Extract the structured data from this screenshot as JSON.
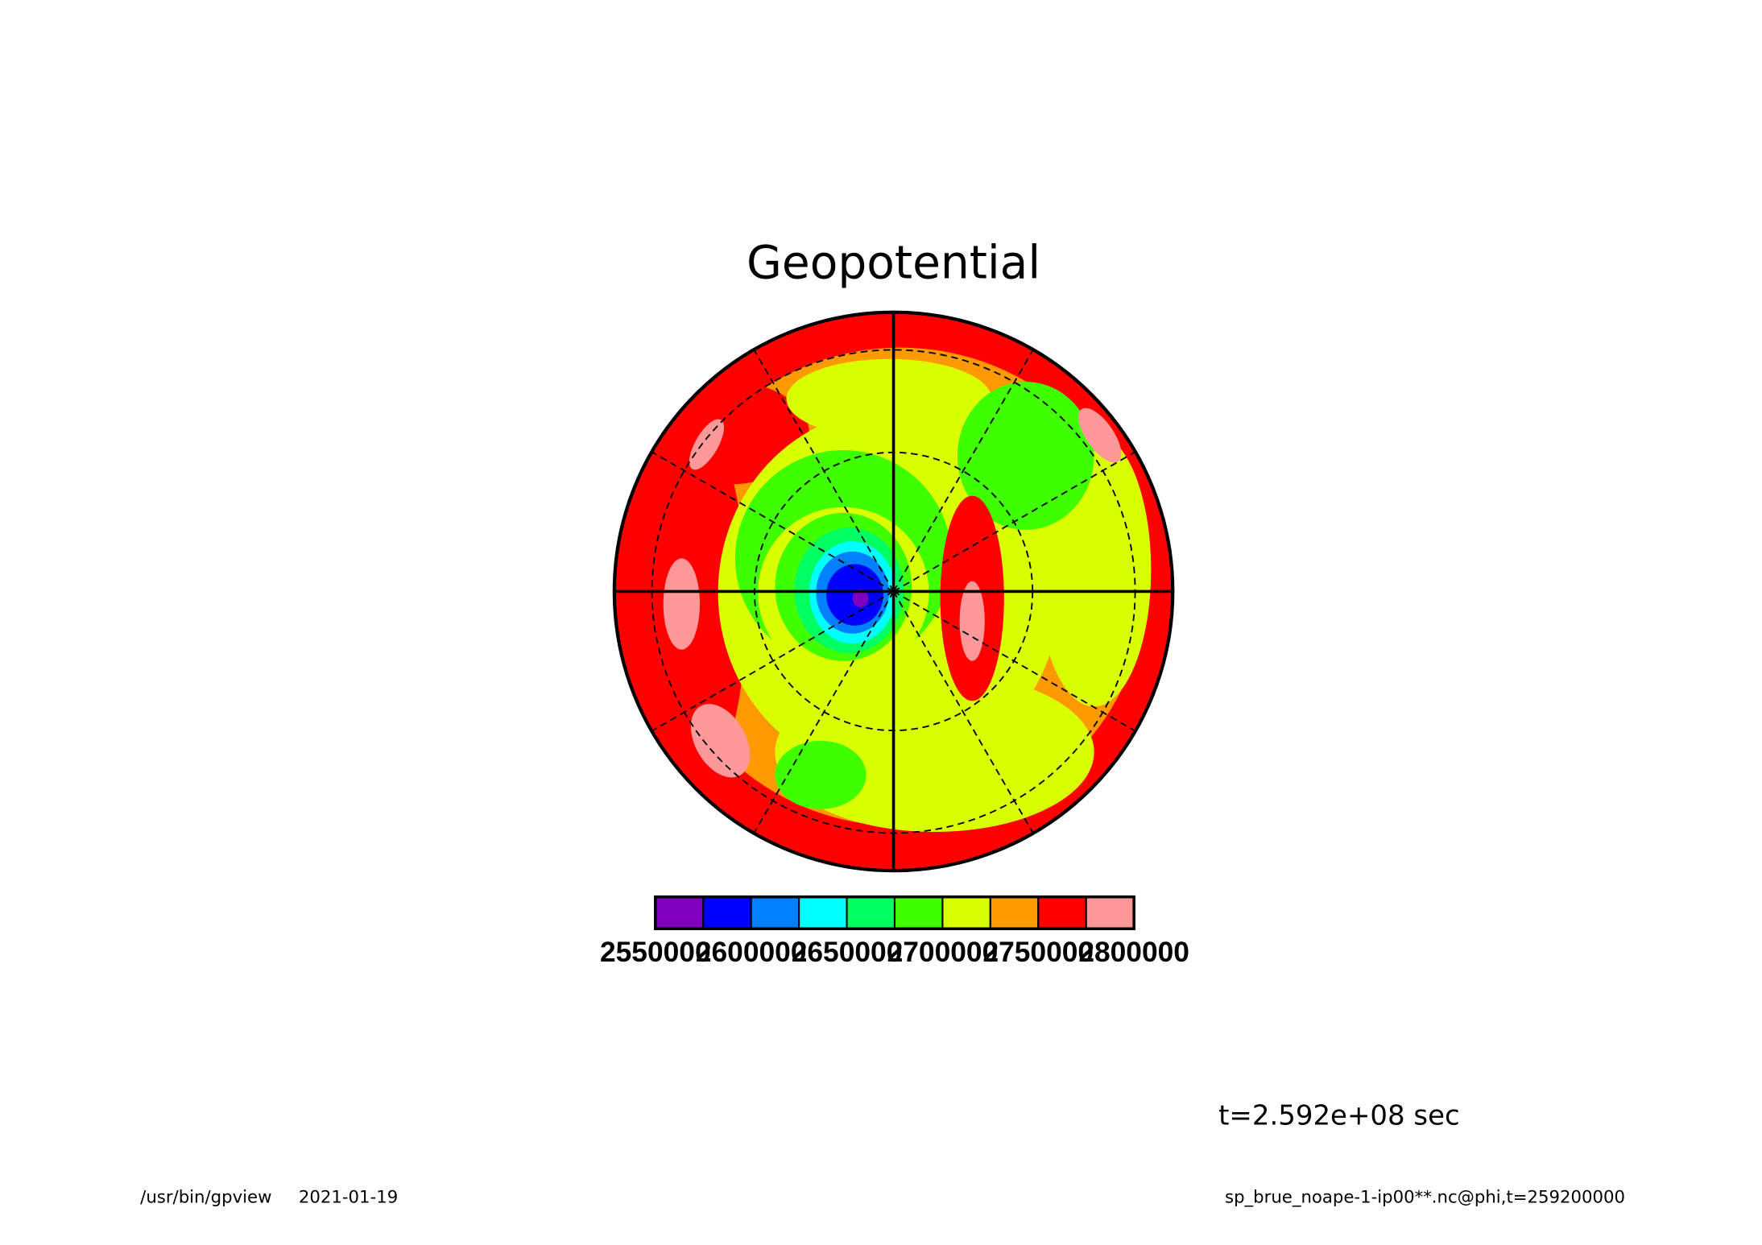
{
  "chart_data": {
    "type": "contour",
    "title": "Geopotential",
    "levels": [
      2550000,
      2575000,
      2600000,
      2625000,
      2650000,
      2675000,
      2700000,
      2725000,
      2750000,
      2775000,
      2800000
    ],
    "colors": [
      "#7f00bf",
      "#0000ff",
      "#0080ff",
      "#00ffff",
      "#00ff60",
      "#40ff00",
      "#d9ff00",
      "#ff9900",
      "#ff0000",
      "#ff9999"
    ],
    "colorbar_ticks": [
      2550000,
      2600000,
      2650000,
      2700000,
      2750000,
      2800000
    ],
    "annotation": "t=2.592e+08 sec",
    "footer_program": "/usr/bin/gpview",
    "footer_date": "2021-01-19",
    "footer_source": "sp_brue_noape-1-ip00**.nc@phi,t=259200000"
  }
}
